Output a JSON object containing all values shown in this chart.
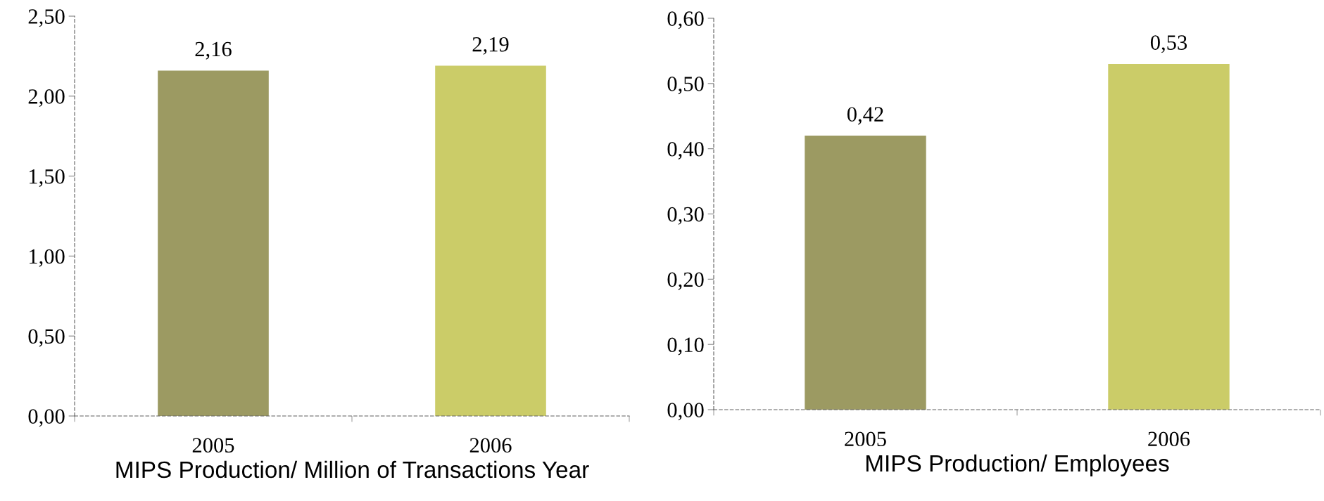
{
  "chart_data": [
    {
      "type": "bar",
      "xlabel": "MIPS Production/ Million of Transactions Year",
      "categories": [
        "2005",
        "2006"
      ],
      "values": [
        2.16,
        2.19
      ],
      "colors": [
        "#9c9a62",
        "#cbcc68"
      ],
      "value_labels": [
        "2,16",
        "2,19"
      ],
      "ylim": [
        0,
        2.5
      ],
      "yticks": [
        {
          "value": 0,
          "label": "0,00"
        },
        {
          "value": 0.5,
          "label": "0,50"
        },
        {
          "value": 1,
          "label": "1,00"
        },
        {
          "value": 1.5,
          "label": "1,50"
        },
        {
          "value": 2,
          "label": "2,00"
        },
        {
          "value": 2.5,
          "label": "2,50"
        }
      ],
      "grid": false,
      "legend": false
    },
    {
      "type": "bar",
      "xlabel": "MIPS Production/ Employees",
      "categories": [
        "2005",
        "2006"
      ],
      "values": [
        0.42,
        0.53
      ],
      "colors": [
        "#9c9a62",
        "#cbcc68"
      ],
      "value_labels": [
        "0,42",
        "0,53"
      ],
      "ylim": [
        0,
        0.6
      ],
      "yticks": [
        {
          "value": 0,
          "label": "0,00"
        },
        {
          "value": 0.1,
          "label": "0,10"
        },
        {
          "value": 0.2,
          "label": "0,20"
        },
        {
          "value": 0.3,
          "label": "0,30"
        },
        {
          "value": 0.4,
          "label": "0,40"
        },
        {
          "value": 0.5,
          "label": "0,50"
        },
        {
          "value": 0.6,
          "label": "0,60"
        }
      ],
      "grid": false,
      "legend": false
    }
  ]
}
